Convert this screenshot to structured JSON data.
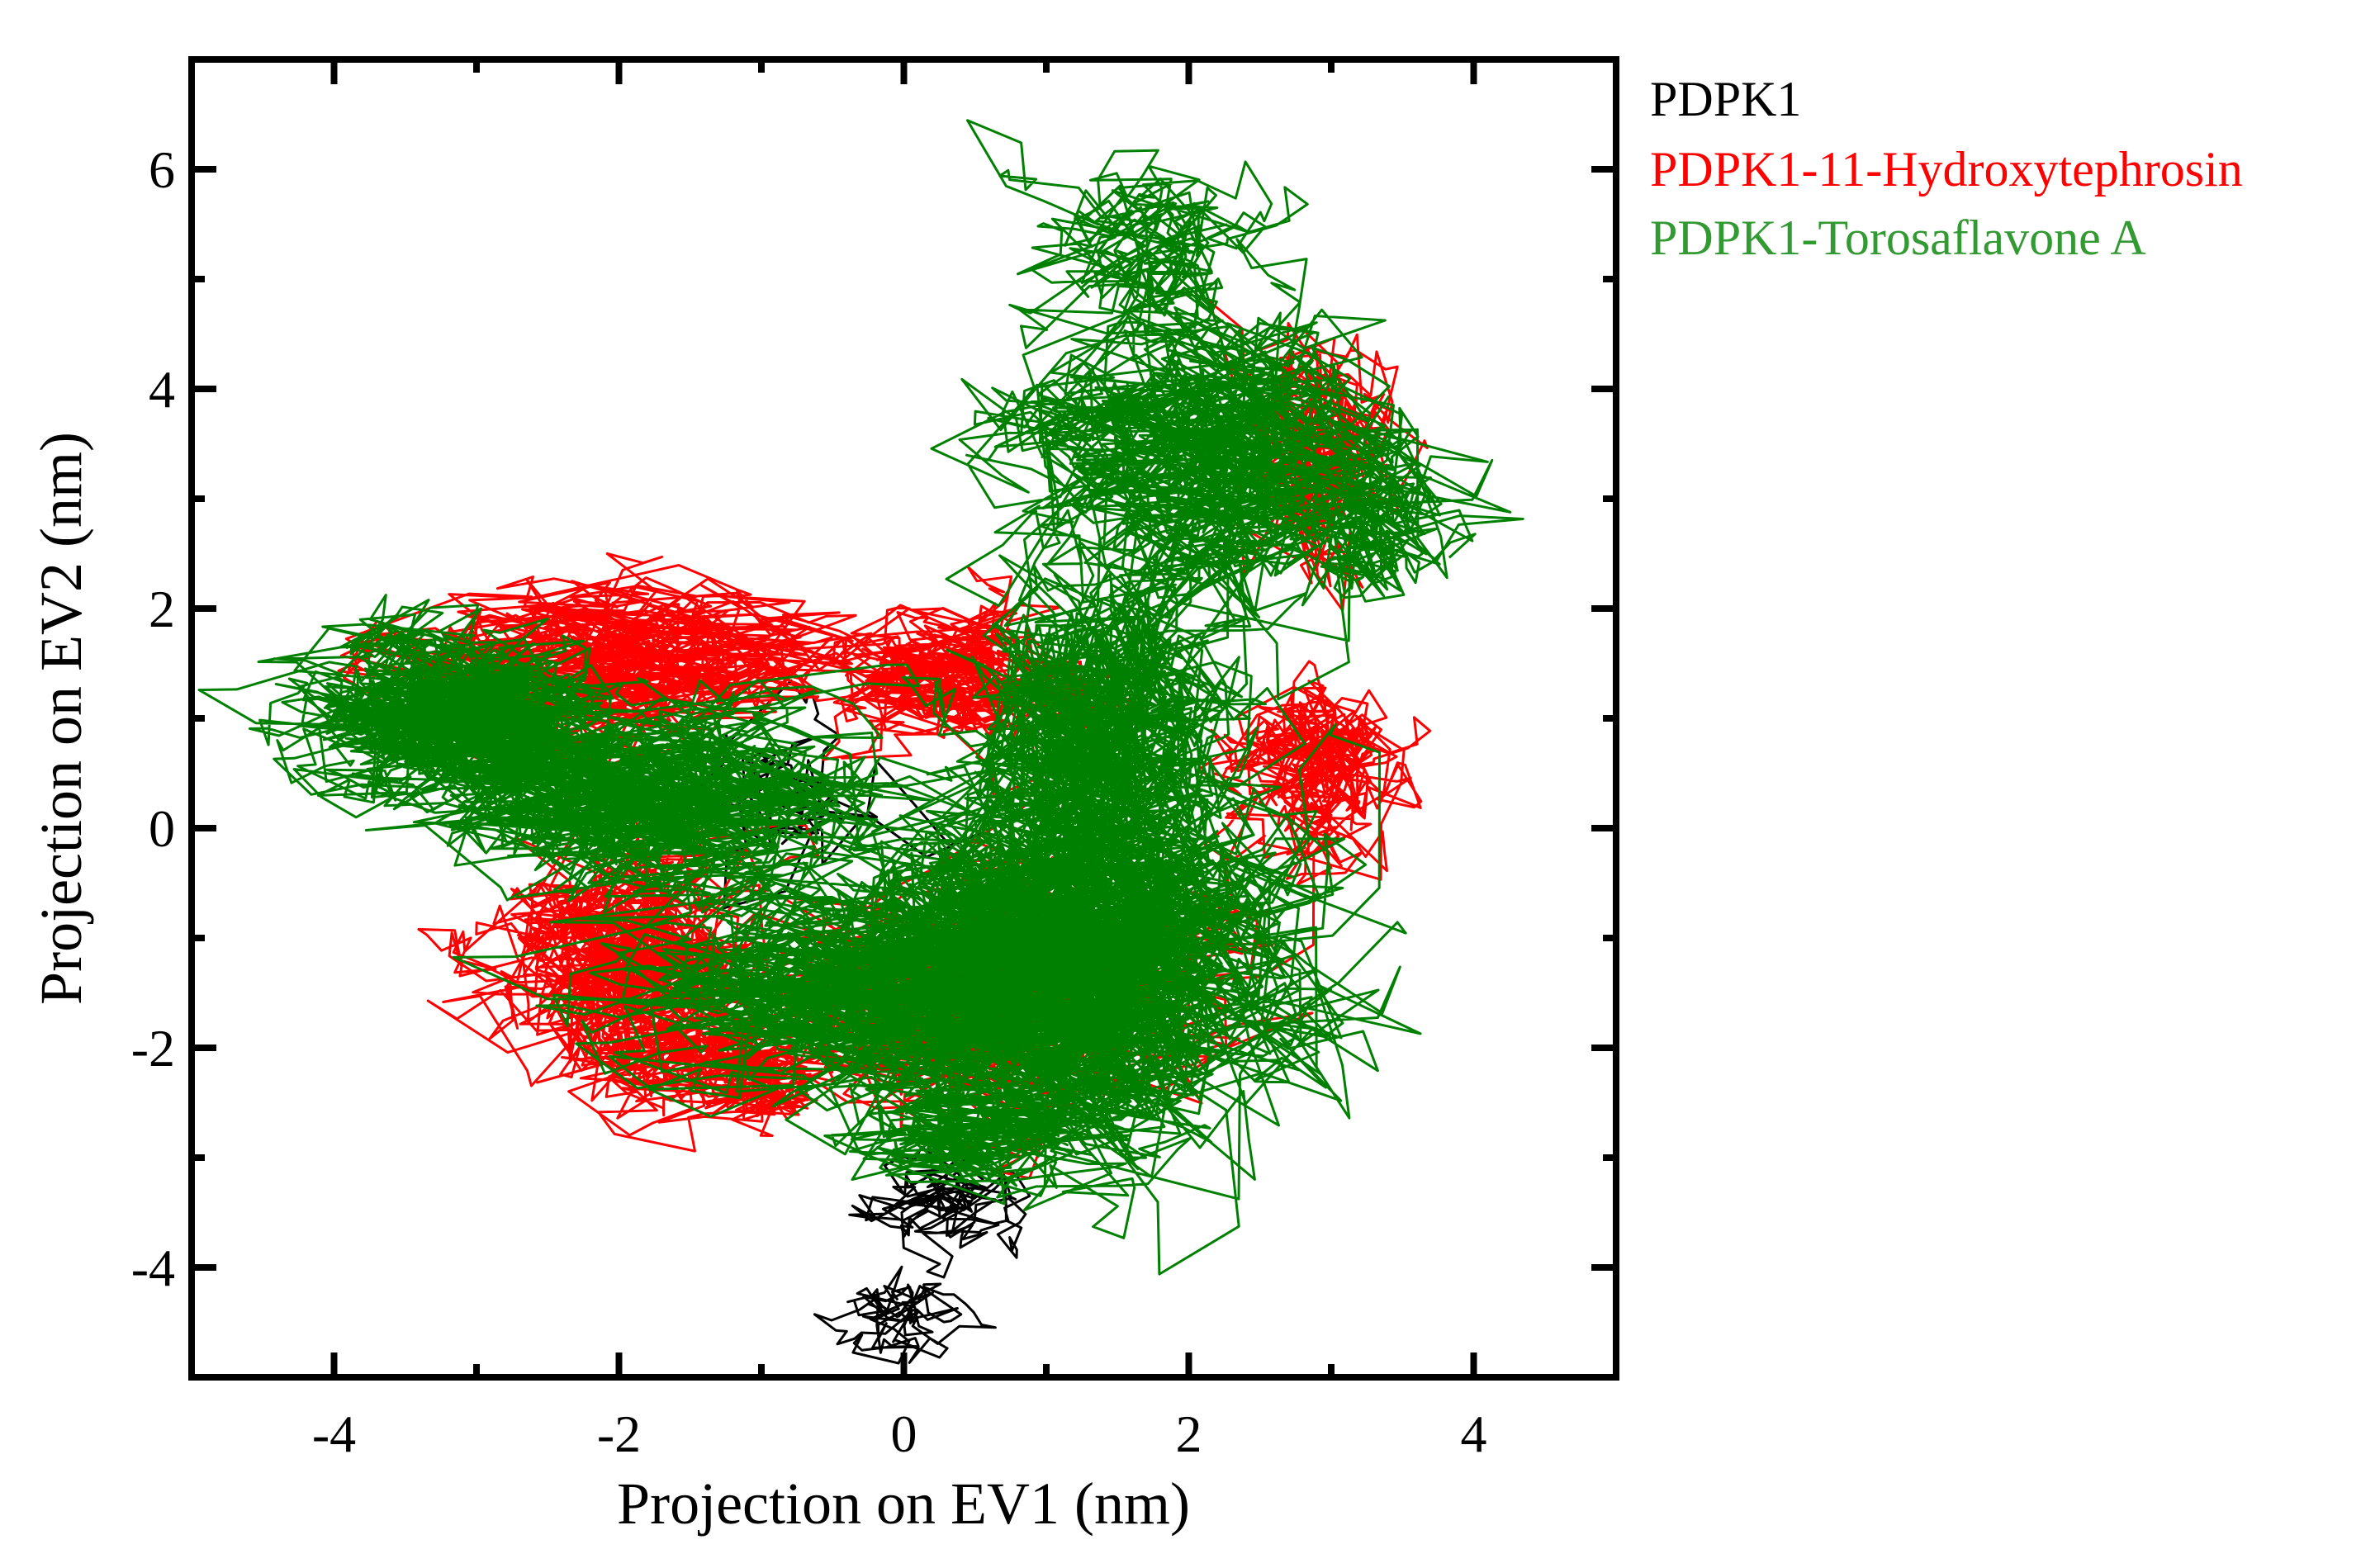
{
  "chart_data": {
    "type": "line",
    "title": "",
    "xlabel": "Projection on EV1 (nm)",
    "ylabel": "Projection on EV2 (nm)",
    "xlim": [
      -5,
      5
    ],
    "ylim": [
      -5,
      7
    ],
    "x_ticks_major": [
      -4,
      -2,
      0,
      2,
      4
    ],
    "x_tick_labels": [
      "-4",
      "-2",
      "0",
      "2",
      "4"
    ],
    "x_ticks_minor": [
      -3,
      -1,
      1,
      3
    ],
    "y_ticks_major": [
      -4,
      -2,
      0,
      2,
      4,
      6
    ],
    "y_tick_labels": [
      "-4",
      "-2",
      "0",
      "2",
      "4",
      "6"
    ],
    "y_ticks_minor": [
      -3,
      -1,
      1,
      3,
      5
    ],
    "grid": false,
    "legend_position": "outside-right-top",
    "series": [
      {
        "name": "PDPK1",
        "color": "#000000",
        "description": "trajectory mainly near (0,-3.5) to (0,-4.5), partially hidden",
        "clusters": [
          {
            "cx": 0.3,
            "cy": -3.5,
            "sx": 0.35,
            "sy": 0.3,
            "n": 150
          },
          {
            "cx": 0.0,
            "cy": -4.4,
            "sx": 0.25,
            "sy": 0.25,
            "n": 120
          },
          {
            "cx": -0.8,
            "cy": 0.3,
            "sx": 0.5,
            "sy": 0.5,
            "n": 80
          }
        ]
      },
      {
        "name": "PDPK1-11-Hydroxytephrosin",
        "color": "#ff0000",
        "clusters": [
          {
            "cx": -2.0,
            "cy": 1.5,
            "sx": 0.8,
            "sy": 0.4,
            "n": 900
          },
          {
            "cx": -2.0,
            "cy": -1.2,
            "sx": 0.5,
            "sy": 0.6,
            "n": 900
          },
          {
            "cx": 0.3,
            "cy": 1.4,
            "sx": 0.5,
            "sy": 0.35,
            "n": 600
          },
          {
            "cx": 2.9,
            "cy": 0.5,
            "sx": 0.35,
            "sy": 0.4,
            "n": 500
          },
          {
            "cx": 2.9,
            "cy": 3.3,
            "sx": 0.3,
            "sy": 0.6,
            "n": 400
          },
          {
            "cx": 0.5,
            "cy": -1.5,
            "sx": 1.0,
            "sy": 0.6,
            "n": 700
          },
          {
            "cx": -1.2,
            "cy": -2.2,
            "sx": 0.5,
            "sy": 0.3,
            "n": 400
          }
        ]
      },
      {
        "name": "PDPK1-Torosaflavone A",
        "color": "#008000",
        "clusters": [
          {
            "cx": -3.2,
            "cy": 1.0,
            "sx": 0.55,
            "sy": 0.4,
            "n": 1500
          },
          {
            "cx": -1.8,
            "cy": 0.3,
            "sx": 0.8,
            "sy": 0.5,
            "n": 1200
          },
          {
            "cx": 1.2,
            "cy": -1.2,
            "sx": 0.9,
            "sy": 0.9,
            "n": 2600
          },
          {
            "cx": -0.3,
            "cy": -1.5,
            "sx": 0.9,
            "sy": 0.5,
            "n": 1200
          },
          {
            "cx": 1.4,
            "cy": 1.0,
            "sx": 0.5,
            "sy": 0.8,
            "n": 1100
          },
          {
            "cx": 2.1,
            "cy": 3.4,
            "sx": 0.8,
            "sy": 0.7,
            "n": 1200
          },
          {
            "cx": 1.7,
            "cy": 5.2,
            "sx": 0.5,
            "sy": 0.5,
            "n": 300
          },
          {
            "cx": 0.6,
            "cy": -2.8,
            "sx": 0.6,
            "sy": 0.25,
            "n": 400
          },
          {
            "cx": 3.3,
            "cy": 2.8,
            "sx": 0.3,
            "sy": 0.4,
            "n": 200
          }
        ]
      }
    ]
  }
}
